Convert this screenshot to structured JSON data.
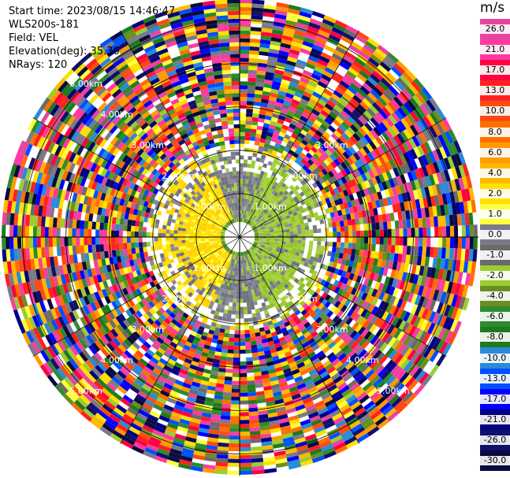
{
  "header": {
    "start_time": "Start time: 2023/08/15 14:46:47",
    "instrument": "WLS200s-181",
    "field": "Field: VEL",
    "elevation": "Elevation(deg): 35.30",
    "nrays": "NRays: 120"
  },
  "colorbar": {
    "unit": "m/s",
    "ticks": [
      "26.0",
      "21.0",
      "17.0",
      "13.0",
      "10.0",
      "8.0",
      "6.0",
      "4.0",
      "2.0",
      "1.0",
      "0.0",
      "-1.0",
      "-2.0",
      "-4.0",
      "-6.0",
      "-8.0",
      "-10.0",
      "-13.0",
      "-17.0",
      "-21.0",
      "-26.0",
      "-30.0"
    ],
    "colors": [
      "#e8449e",
      "#ff3aa0",
      "#ff0040",
      "#ff2020",
      "#ff4a10",
      "#ff6f00",
      "#ff9a00",
      "#ffb800",
      "#ffe000",
      "#ffff40",
      "#7a7a8a",
      "#6a6a6a",
      "#9acd32",
      "#6b8e23",
      "#2e8b2e",
      "#1f7a1f",
      "#2a8ad8",
      "#0050ff",
      "#0000ff",
      "#000080",
      "#10106a",
      "#0a0a40"
    ]
  },
  "chart_data": {
    "type": "ppi",
    "field": "VEL",
    "unit": "m/s",
    "nrays": 120,
    "elevation_deg": 35.3,
    "range_rings_km": [
      "1.00km",
      "2.00km",
      "3.00km",
      "4.00km",
      "5.00km"
    ],
    "ring_labels": {
      "upper_left": [
        "1.00km",
        "2.00km",
        "3.00km",
        "4.00km",
        "5.00km"
      ],
      "upper_right": [
        "1.00km",
        "2.00km",
        "3.00km"
      ],
      "lower_left": [
        "1.00km",
        "2.00km",
        "3.00km",
        "4.00km",
        "5.00km"
      ],
      "lower_right": [
        "1.00km",
        "2.00km",
        "3.00km",
        "4.00km",
        "5.00km"
      ]
    },
    "vmin": -30.0,
    "vmax": 26.0,
    "max_range_km": 5.5
  }
}
